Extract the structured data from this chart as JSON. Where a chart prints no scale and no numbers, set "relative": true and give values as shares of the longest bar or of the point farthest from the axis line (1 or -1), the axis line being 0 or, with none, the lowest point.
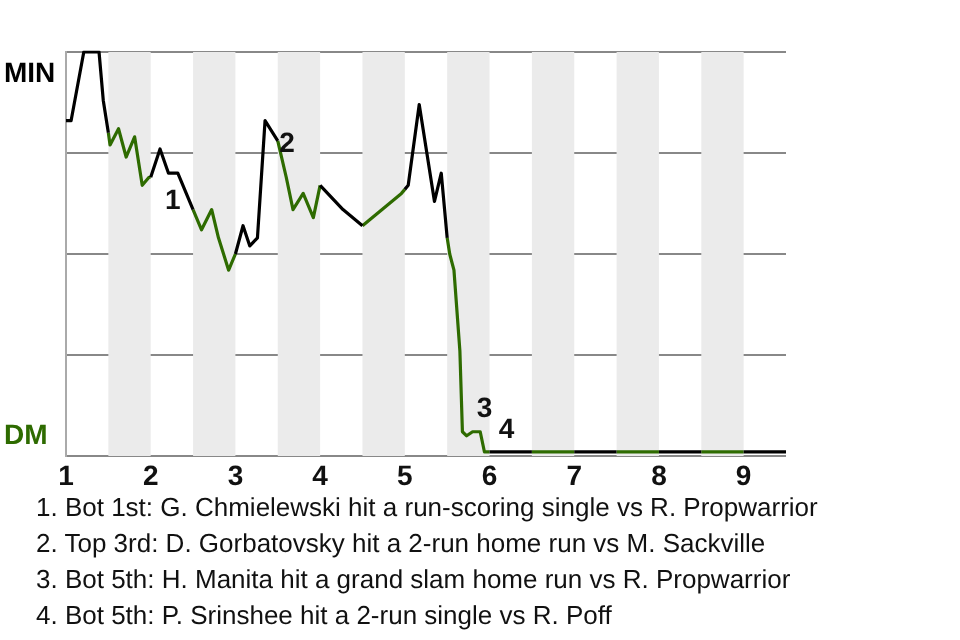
{
  "chart_data": {
    "type": "line",
    "relative": true,
    "xlim": [
      1,
      9.5
    ],
    "xticks": [
      1,
      2,
      3,
      4,
      5,
      6,
      7,
      8,
      9
    ],
    "grid": "y",
    "legend": false,
    "marker": "none",
    "line_style": "solid",
    "series": [
      {
        "color": "#000000",
        "x": [
          1.0,
          1.06,
          1.21,
          1.39,
          1.44,
          1.5,
          1.75,
          2.0,
          2.11,
          2.21,
          2.32,
          2.5,
          2.75,
          3.0,
          3.09,
          3.17,
          3.26,
          3.35,
          3.5,
          3.75,
          4.0,
          4.27,
          4.5,
          4.75,
          5.0,
          5.04,
          5.17,
          5.35,
          5.43,
          5.5,
          5.75,
          6.0,
          6.5,
          6.75,
          7.0,
          7.5,
          7.75,
          8.0,
          8.5,
          8.75,
          9.0,
          9.5
        ],
        "values": [
          0.83,
          0.83,
          1,
          1,
          0.88,
          0.8,
          null,
          0.69,
          0.76,
          0.7,
          0.7,
          0.61,
          null,
          0.5,
          0.57,
          0.52,
          0.54,
          0.83,
          0.78,
          null,
          0.67,
          0.61,
          0.57,
          null,
          0.66,
          0.67,
          0.87,
          0.63,
          0.7,
          0.54,
          null,
          0.01,
          0.01,
          null,
          0.01,
          0.01,
          null,
          0.01,
          0.01,
          null,
          0.01,
          0.01
        ]
      },
      {
        "color": "#2e6b00",
        "x": [
          1.5,
          1.52,
          1.62,
          1.71,
          1.81,
          1.9,
          1.98,
          2.0,
          2.25,
          2.5,
          2.6,
          2.72,
          2.8,
          2.92,
          3.0,
          3.25,
          3.5,
          3.6,
          3.68,
          3.8,
          3.92,
          4.0,
          4.25,
          4.5,
          4.96,
          5.0,
          5.25,
          5.5,
          5.53,
          5.58,
          5.65,
          5.68,
          5.73,
          5.8,
          5.89,
          5.94,
          6.0,
          6.25,
          6.5,
          7.0,
          7.25,
          7.5,
          8.0,
          8.25,
          8.5,
          9.0
        ],
        "values": [
          0.8,
          0.77,
          0.81,
          0.74,
          0.79,
          0.67,
          0.69,
          0.69,
          null,
          0.61,
          0.56,
          0.61,
          0.54,
          0.46,
          0.5,
          null,
          0.78,
          0.69,
          0.61,
          0.65,
          0.59,
          0.67,
          null,
          0.57,
          0.65,
          0.66,
          null,
          0.54,
          0.5,
          0.46,
          0.26,
          0.06,
          0.05,
          0.06,
          0.06,
          0.01,
          0.01,
          null,
          0.01,
          0.01,
          null,
          0.01,
          0.01,
          null,
          0.01,
          0.01
        ]
      }
    ],
    "bands": [
      {
        "axis": "x",
        "from": 1.5,
        "to": 2,
        "color": "#ebebeb"
      },
      {
        "axis": "x",
        "from": 2.5,
        "to": 3,
        "color": "#ebebeb"
      },
      {
        "axis": "x",
        "from": 3.5,
        "to": 4,
        "color": "#ebebeb"
      },
      {
        "axis": "x",
        "from": 4.5,
        "to": 5,
        "color": "#ebebeb"
      },
      {
        "axis": "x",
        "from": 5.5,
        "to": 6,
        "color": "#ebebeb"
      },
      {
        "axis": "x",
        "from": 6.5,
        "to": 7,
        "color": "#ebebeb"
      },
      {
        "axis": "x",
        "from": 7.5,
        "to": 8,
        "color": "#ebebeb"
      },
      {
        "axis": "x",
        "from": 8.5,
        "to": 9,
        "color": "#ebebeb"
      }
    ],
    "annotations": [
      "MIN",
      "DM",
      {
        "text": "1",
        "x": 2.0,
        "y": 0.69
      },
      {
        "text": "2",
        "x": 3.35,
        "y": 0.83
      },
      {
        "text": "3",
        "x": 5.68,
        "y": 0.06
      },
      {
        "text": "4",
        "x": 5.94,
        "y": 0.01
      },
      "1. Bot 1st: G. Chmielewski hit a run-scoring single vs R. Propwarrior",
      "2. Top 3rd: D. Gorbatovsky hit a 2-run home run vs M. Sackville",
      "3. Bot 5th: H. Manita hit a grand slam home run vs R. Propwarrior",
      "4. Bot 5th: P. Srinshee hit a 2-run single vs R. Poff"
    ]
  }
}
